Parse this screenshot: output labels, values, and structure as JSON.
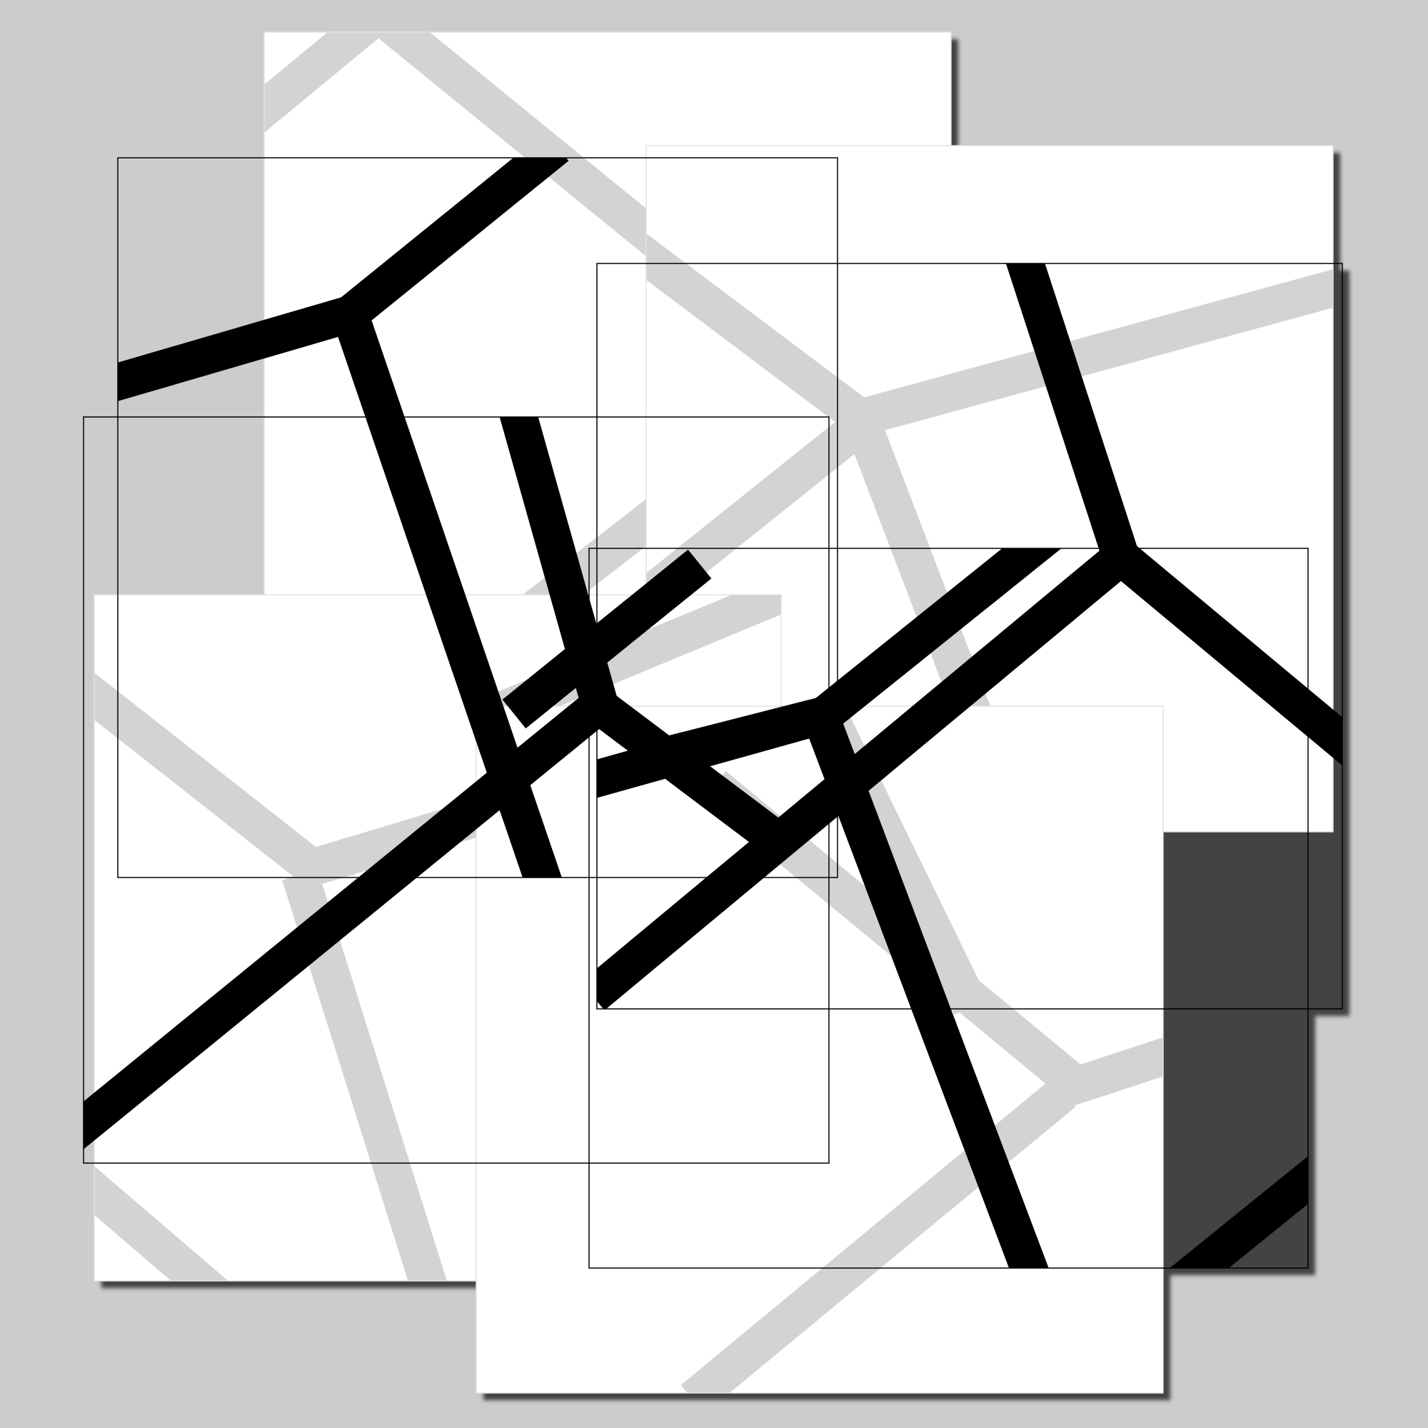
{
  "artwork": {
    "title": "",
    "colors": {
      "background": "#cccccc",
      "paper": "#ffffff",
      "shadow": "#2b2b2b",
      "ink_dark": "#000000",
      "ink_light": "#d3d3d3",
      "frame_dark": "#000000",
      "frame_light": "#e2e2e2"
    },
    "layer_count": 2,
    "layers": [
      {
        "name": "faded-pattern",
        "tone": "light-grey",
        "frame_count": 4
      },
      {
        "name": "foreground-pattern",
        "tone": "black",
        "frame_count": 4
      }
    ]
  }
}
